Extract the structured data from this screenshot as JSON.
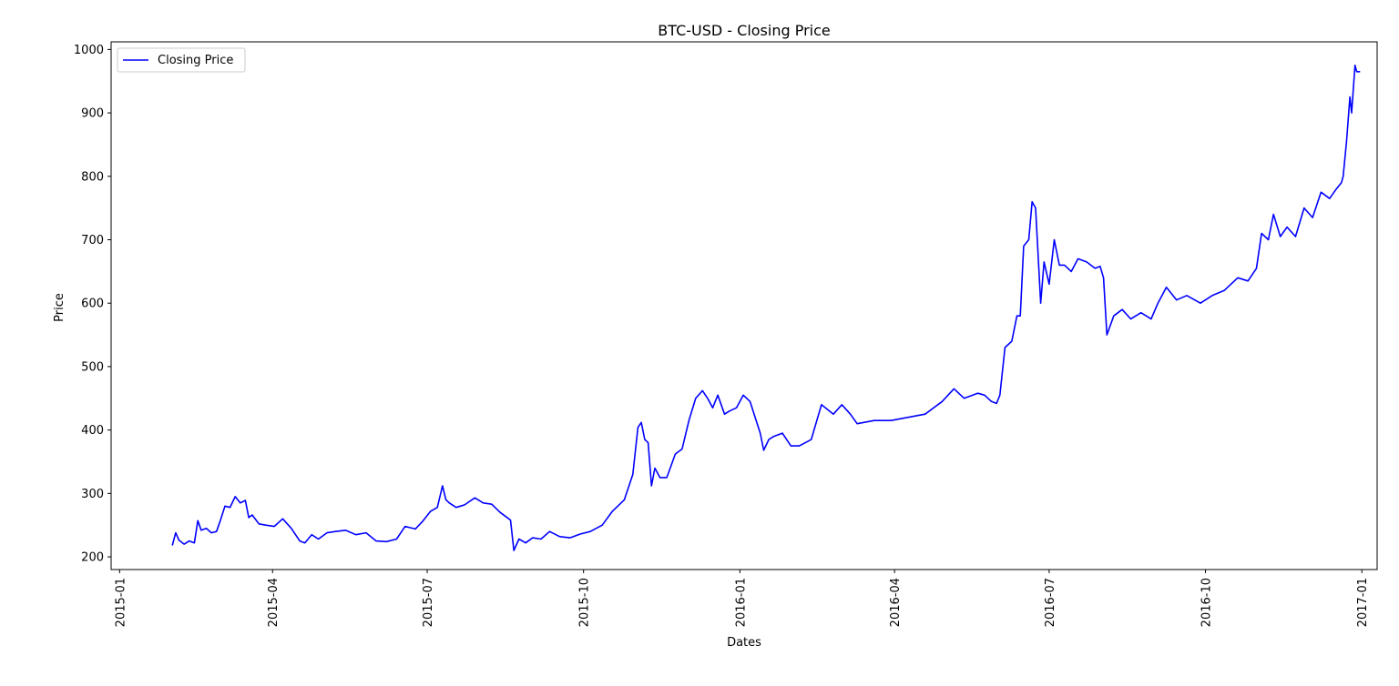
{
  "chart_data": {
    "type": "line",
    "title": "BTC-USD - Closing Price",
    "xlabel": "Dates",
    "ylabel": "Price",
    "xlim": [
      "2014-12-27",
      "2017-01-10"
    ],
    "ylim": [
      180,
      1012
    ],
    "grid": false,
    "legend_position": "top-left",
    "x_ticks": [
      "2015-01",
      "2015-04",
      "2015-07",
      "2015-10",
      "2016-01",
      "2016-04",
      "2016-07",
      "2016-10",
      "2017-01"
    ],
    "y_ticks": [
      200,
      300,
      400,
      500,
      600,
      700,
      800,
      900,
      1000
    ],
    "series": [
      {
        "name": "Closing Price",
        "color": "#0000ff",
        "x": [
          "2015-02-01",
          "2015-02-03",
          "2015-02-05",
          "2015-02-08",
          "2015-02-11",
          "2015-02-14",
          "2015-02-16",
          "2015-02-18",
          "2015-02-21",
          "2015-02-24",
          "2015-02-27",
          "2015-03-01",
          "2015-03-04",
          "2015-03-07",
          "2015-03-10",
          "2015-03-13",
          "2015-03-16",
          "2015-03-18",
          "2015-03-20",
          "2015-03-24",
          "2015-03-28",
          "2015-04-02",
          "2015-04-07",
          "2015-04-12",
          "2015-04-17",
          "2015-04-20",
          "2015-04-24",
          "2015-04-28",
          "2015-05-03",
          "2015-05-08",
          "2015-05-14",
          "2015-05-20",
          "2015-05-26",
          "2015-06-01",
          "2015-06-07",
          "2015-06-13",
          "2015-06-18",
          "2015-06-24",
          "2015-06-28",
          "2015-07-03",
          "2015-07-07",
          "2015-07-10",
          "2015-07-12",
          "2015-07-14",
          "2015-07-18",
          "2015-07-23",
          "2015-07-29",
          "2015-08-03",
          "2015-08-08",
          "2015-08-13",
          "2015-08-17",
          "2015-08-19",
          "2015-08-21",
          "2015-08-24",
          "2015-08-28",
          "2015-09-01",
          "2015-09-06",
          "2015-09-11",
          "2015-09-17",
          "2015-09-23",
          "2015-09-29",
          "2015-10-05",
          "2015-10-12",
          "2015-10-18",
          "2015-10-25",
          "2015-10-30",
          "2015-11-02",
          "2015-11-04",
          "2015-11-06",
          "2015-11-08",
          "2015-11-10",
          "2015-11-12",
          "2015-11-15",
          "2015-11-19",
          "2015-11-24",
          "2015-11-28",
          "2015-12-02",
          "2015-12-06",
          "2015-12-10",
          "2015-12-13",
          "2015-12-16",
          "2015-12-19",
          "2015-12-23",
          "2015-12-26",
          "2015-12-30",
          "2016-01-03",
          "2016-01-07",
          "2016-01-10",
          "2016-01-13",
          "2016-01-15",
          "2016-01-18",
          "2016-01-21",
          "2016-01-26",
          "2016-01-31",
          "2016-02-05",
          "2016-02-12",
          "2016-02-18",
          "2016-02-25",
          "2016-03-01",
          "2016-03-06",
          "2016-03-10",
          "2016-03-20",
          "2016-03-30",
          "2016-04-09",
          "2016-04-19",
          "2016-04-29",
          "2016-05-06",
          "2016-05-12",
          "2016-05-20",
          "2016-05-24",
          "2016-05-28",
          "2016-05-31",
          "2016-06-02",
          "2016-06-05",
          "2016-06-09",
          "2016-06-12",
          "2016-06-14",
          "2016-06-16",
          "2016-06-19",
          "2016-06-21",
          "2016-06-23",
          "2016-06-26",
          "2016-06-28",
          "2016-07-01",
          "2016-07-04",
          "2016-07-07",
          "2016-07-10",
          "2016-07-14",
          "2016-07-18",
          "2016-07-23",
          "2016-07-28",
          "2016-07-31",
          "2016-08-02",
          "2016-08-04",
          "2016-08-08",
          "2016-08-13",
          "2016-08-18",
          "2016-08-24",
          "2016-08-30",
          "2016-09-03",
          "2016-09-08",
          "2016-09-14",
          "2016-09-20",
          "2016-09-28",
          "2016-10-05",
          "2016-10-12",
          "2016-10-20",
          "2016-10-26",
          "2016-10-31",
          "2016-11-03",
          "2016-11-07",
          "2016-11-10",
          "2016-11-14",
          "2016-11-18",
          "2016-11-23",
          "2016-11-28",
          "2016-12-03",
          "2016-12-08",
          "2016-12-13",
          "2016-12-17",
          "2016-12-20",
          "2016-12-21",
          "2016-12-23",
          "2016-12-25",
          "2016-12-26",
          "2016-12-28",
          "2016-12-29",
          "2016-12-31"
        ],
        "values": [
          218,
          238,
          226,
          220,
          225,
          222,
          257,
          242,
          245,
          238,
          240,
          255,
          280,
          278,
          295,
          285,
          289,
          262,
          266,
          252,
          250,
          248,
          260,
          245,
          225,
          222,
          235,
          228,
          238,
          240,
          242,
          235,
          238,
          225,
          224,
          228,
          248,
          244,
          255,
          272,
          278,
          312,
          290,
          285,
          278,
          282,
          293,
          285,
          283,
          270,
          262,
          258,
          210,
          228,
          222,
          230,
          228,
          240,
          232,
          230,
          236,
          240,
          250,
          272,
          290,
          330,
          404,
          412,
          385,
          380,
          312,
          340,
          325,
          325,
          362,
          370,
          415,
          450,
          462,
          450,
          435,
          455,
          425,
          430,
          435,
          455,
          445,
          420,
          395,
          368,
          385,
          390,
          395,
          375,
          375,
          385,
          440,
          425,
          440,
          425,
          410,
          415,
          415,
          420,
          425,
          445,
          465,
          450,
          458,
          455,
          445,
          442,
          455,
          530,
          540,
          580,
          580,
          690,
          700,
          760,
          750,
          600,
          665,
          630,
          700,
          660,
          660,
          650,
          670,
          665,
          655,
          658,
          640,
          550,
          580,
          590,
          575,
          585,
          575,
          600,
          625,
          605,
          612,
          600,
          612,
          620,
          640,
          635,
          655,
          710,
          700,
          740,
          705,
          720,
          705,
          750,
          735,
          775,
          765,
          780,
          790,
          800,
          855,
          925,
          900,
          975,
          965,
          965
        ]
      }
    ]
  }
}
